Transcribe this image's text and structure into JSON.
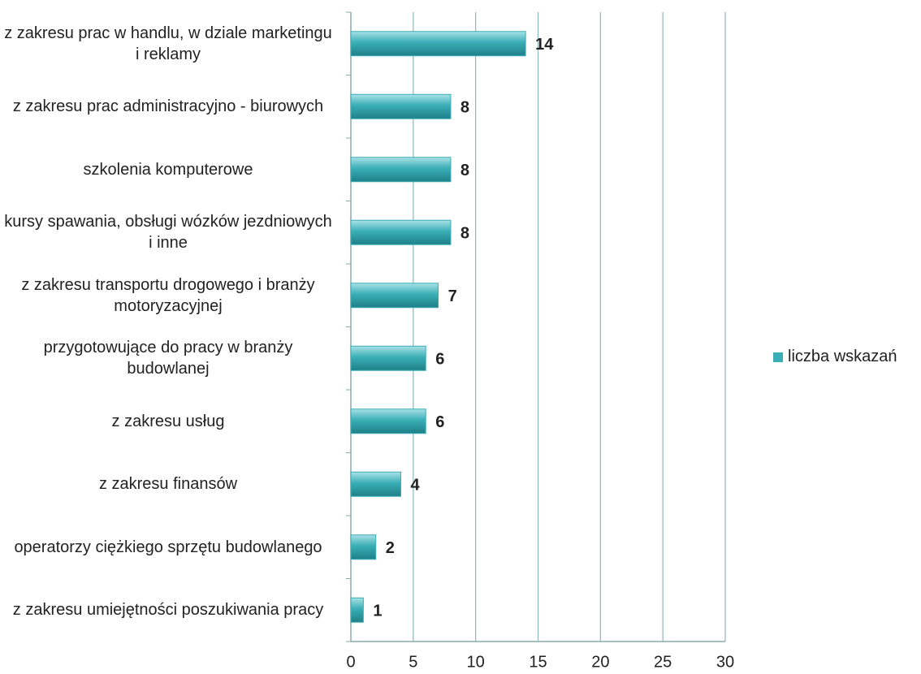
{
  "chart_data": {
    "type": "bar",
    "orientation": "horizontal",
    "categories": [
      "z zakresu prac w handlu, w dziale marketingu i reklamy",
      "z zakresu prac administracyjno - biurowych",
      "szkolenia komputerowe",
      "kursy spawania, obsługi wózków jezdniowych i inne",
      "z zakresu transportu drogowego i branży motoryzacyjnej",
      "przygotowujące do pracy w branży budowlanej",
      "z zakresu usług",
      "z zakresu finansów",
      "operatorzy ciężkiego sprzętu budowlanego",
      "z zakresu umiejętności poszukiwania pracy"
    ],
    "series": [
      {
        "name": "liczba wskazań",
        "color": "#3aaeb6",
        "values": [
          14,
          8,
          8,
          8,
          7,
          6,
          6,
          4,
          2,
          1
        ]
      }
    ],
    "xlim": [
      0,
      30
    ],
    "xticks": [
      0,
      5,
      10,
      15,
      20,
      25,
      30
    ],
    "grid": true,
    "legend": "right"
  }
}
